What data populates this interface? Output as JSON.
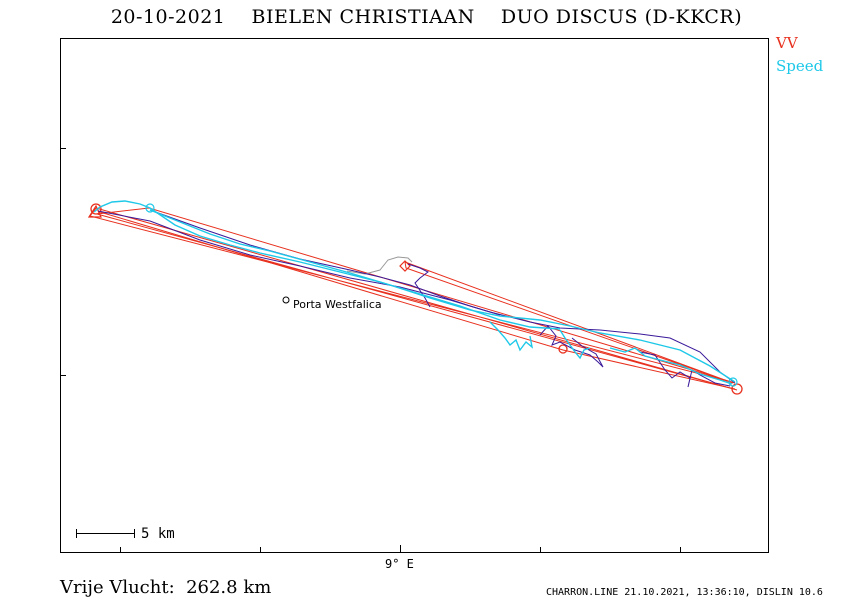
{
  "header": {
    "title": "20-10-2021    BIELEN CHRISTIAAN    DUO DISCUS (D-KKCR)"
  },
  "legend": {
    "items": [
      {
        "label": "VV",
        "color": "#e8301e"
      },
      {
        "label": "Speed",
        "color": "#1ec8e8"
      }
    ]
  },
  "map": {
    "x_axis_label": "9° E",
    "scale_bar_label": "5 km",
    "place": {
      "name": "Porta Westfalica"
    },
    "colors": {
      "task_line": "#e8301e",
      "track_speed": "#1ec8e8",
      "track_vario": "#3a1a9a",
      "track_gray": "#999999"
    }
  },
  "footer": {
    "distance": "Vrije Vlucht:  262.8 km",
    "credit": "CHARRON.LINE 21.10.2021, 13:36:10, DISLIN 10.6"
  }
}
